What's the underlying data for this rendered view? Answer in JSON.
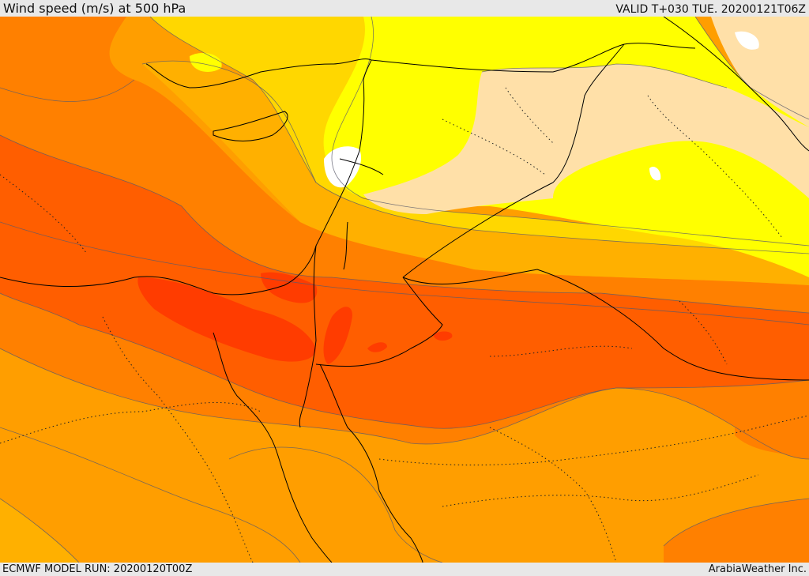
{
  "header": {
    "title": "Wind speed (m/s) at 500 hPa",
    "valid_time": "VALID T+030 TUE. 20200121T06Z"
  },
  "footer": {
    "model_run": "ECMWF MODEL RUN: 20200120T00Z",
    "credit": "ArabiaWeather Inc."
  },
  "palette": {
    "lightest": "#ffe0a8",
    "yellow": "#ffff00",
    "gold": "#ffd700",
    "amber": "#ffb000",
    "orange": "#ff9e00",
    "dark_orange": "#ff8000",
    "red_orange": "#ff5e00",
    "red": "#ff3c00",
    "no_data": "#ffffff"
  }
}
